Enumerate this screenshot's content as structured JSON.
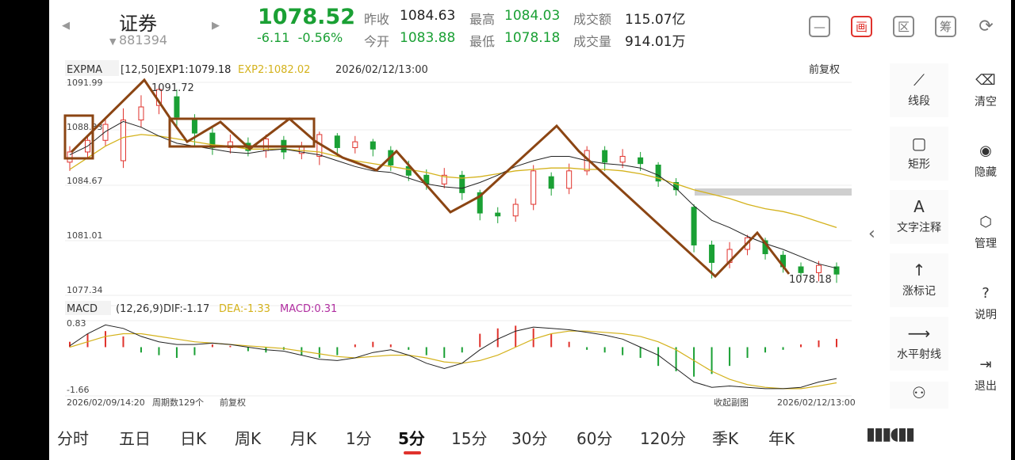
{
  "header": {
    "name": "证券",
    "code": "881394",
    "price": "1078.52",
    "change": "-6.11",
    "change_pct": "-0.56%",
    "stats": [
      {
        "label": "昨收",
        "value": "1084.63",
        "color": "#222222"
      },
      {
        "label": "今开",
        "value": "1083.88",
        "color": "#1aa034"
      },
      {
        "label": "最高",
        "value": "1084.03",
        "color": "#1aa034"
      },
      {
        "label": "最低",
        "value": "1078.18",
        "color": "#1aa034"
      },
      {
        "label": "成交额",
        "value": "115.07亿",
        "color": "#222222"
      },
      {
        "label": "成交量",
        "value": "914.01万",
        "color": "#222222"
      }
    ],
    "icons": [
      {
        "name": "minimize-icon",
        "glyph": "—"
      },
      {
        "name": "draw-icon",
        "glyph": "画"
      },
      {
        "name": "region-icon",
        "glyph": "区"
      },
      {
        "name": "chips-icon",
        "glyph": "筹"
      },
      {
        "name": "rotate-screen-icon",
        "glyph": "⟳"
      }
    ]
  },
  "main_chart": {
    "indicator": "EXPMA",
    "params": "[12,50]",
    "exp1": "EXP1:1079.18",
    "exp2": "EXP2:1082.02",
    "datetime": "2026/02/12/13:00",
    "adjust": "前复权",
    "y_labels": [
      "1091.99",
      "1088.33",
      "1084.67",
      "1081.01",
      "1077.34"
    ],
    "high_label": "1091.72",
    "low_label": "1078.18"
  },
  "sub_chart": {
    "indicator": "MACD",
    "params": "(12,26,9)",
    "dif": "DIF:-1.17",
    "dea": "DEA:-1.33",
    "macd": "MACD:0.31",
    "y_top": "0.83",
    "y_bottom": "-1.66",
    "start_time": "2026/02/09/14:20",
    "period_count": "周期数129个",
    "adjust": "前复权",
    "collapse": "收起副图",
    "end_time": "2026/02/12/13:00"
  },
  "colors": {
    "up": "#e0322c",
    "down": "#1aa034",
    "exp1": "#222222",
    "exp2": "#d4b21c",
    "trend": "#8b4513",
    "dea": "#d4b21c"
  },
  "chart_data": {
    "type": "candlestick",
    "indicator": "EXPMA(12,50)",
    "ylim": [
      1077.34,
      1091.99
    ],
    "series": [
      {
        "name": "EXP1",
        "values": [
          1087.0,
          1087.6,
          1088.6,
          1089.3,
          1088.9,
          1088.3,
          1087.8,
          1087.6,
          1087.4,
          1087.2,
          1087.1,
          1087.3,
          1087.4,
          1087.2,
          1087.0,
          1086.6,
          1086.2,
          1085.9,
          1085.8,
          1085.4,
          1085.0,
          1084.8,
          1084.7,
          1085.1,
          1085.6,
          1086.2,
          1086.6,
          1086.9,
          1086.9,
          1086.6,
          1086.4,
          1086.3,
          1086.1,
          1085.6,
          1084.7,
          1083.5,
          1082.5,
          1082.0,
          1081.4,
          1080.9,
          1080.5,
          1080.0,
          1079.5,
          1079.2
        ]
      },
      {
        "name": "EXP2",
        "values": [
          1086.0,
          1086.8,
          1087.6,
          1088.2,
          1088.4,
          1088.3,
          1088.1,
          1087.9,
          1087.7,
          1087.6,
          1087.4,
          1087.4,
          1087.4,
          1087.3,
          1087.2,
          1086.9,
          1086.6,
          1086.4,
          1086.2,
          1086.0,
          1085.8,
          1085.5,
          1085.4,
          1085.5,
          1085.7,
          1085.9,
          1086.0,
          1086.1,
          1086.1,
          1086.0,
          1086.0,
          1085.9,
          1085.7,
          1085.4,
          1085.0,
          1084.6,
          1084.3,
          1084.0,
          1083.6,
          1083.3,
          1083.1,
          1082.8,
          1082.4,
          1082.0
        ]
      }
    ],
    "candles": [
      {
        "o": 1086.5,
        "c": 1087.2,
        "h": 1087.6,
        "l": 1085.9
      },
      {
        "o": 1087.2,
        "c": 1088.0,
        "h": 1088.3,
        "l": 1086.8
      },
      {
        "o": 1088.0,
        "c": 1089.1,
        "h": 1089.6,
        "l": 1087.6
      },
      {
        "o": 1086.6,
        "c": 1089.4,
        "h": 1090.2,
        "l": 1086.1
      },
      {
        "o": 1089.4,
        "c": 1090.3,
        "h": 1091.1,
        "l": 1088.9
      },
      {
        "o": 1090.4,
        "c": 1091.5,
        "h": 1091.7,
        "l": 1089.8
      },
      {
        "o": 1091.0,
        "c": 1089.6,
        "h": 1091.5,
        "l": 1088.8
      },
      {
        "o": 1089.5,
        "c": 1088.5,
        "h": 1089.8,
        "l": 1087.6
      },
      {
        "o": 1088.5,
        "c": 1087.5,
        "h": 1088.9,
        "l": 1087.0
      },
      {
        "o": 1087.5,
        "c": 1087.9,
        "h": 1088.4,
        "l": 1087.1
      },
      {
        "o": 1087.8,
        "c": 1087.3,
        "h": 1088.2,
        "l": 1086.9
      },
      {
        "o": 1087.3,
        "c": 1088.1,
        "h": 1088.4,
        "l": 1086.8
      },
      {
        "o": 1088.0,
        "c": 1087.2,
        "h": 1088.3,
        "l": 1086.7
      },
      {
        "o": 1087.1,
        "c": 1087.6,
        "h": 1087.9,
        "l": 1086.7
      },
      {
        "o": 1086.9,
        "c": 1088.4,
        "h": 1088.6,
        "l": 1086.3
      },
      {
        "o": 1088.3,
        "c": 1087.5,
        "h": 1088.5,
        "l": 1086.9
      },
      {
        "o": 1087.5,
        "c": 1087.9,
        "h": 1088.3,
        "l": 1087.1
      },
      {
        "o": 1087.9,
        "c": 1087.4,
        "h": 1088.1,
        "l": 1086.9
      },
      {
        "o": 1087.3,
        "c": 1086.3,
        "h": 1087.6,
        "l": 1085.9
      },
      {
        "o": 1086.2,
        "c": 1085.6,
        "h": 1086.6,
        "l": 1085.2
      },
      {
        "o": 1085.6,
        "c": 1085.0,
        "h": 1086.0,
        "l": 1084.6
      },
      {
        "o": 1085.0,
        "c": 1085.6,
        "h": 1086.1,
        "l": 1084.7
      },
      {
        "o": 1085.6,
        "c": 1084.4,
        "h": 1085.9,
        "l": 1083.9
      },
      {
        "o": 1084.4,
        "c": 1083.0,
        "h": 1084.6,
        "l": 1082.5
      },
      {
        "o": 1083.0,
        "c": 1082.8,
        "h": 1083.4,
        "l": 1082.3
      },
      {
        "o": 1082.8,
        "c": 1083.6,
        "h": 1084.0,
        "l": 1082.4
      },
      {
        "o": 1083.6,
        "c": 1085.9,
        "h": 1086.3,
        "l": 1083.2
      },
      {
        "o": 1085.5,
        "c": 1084.7,
        "h": 1085.8,
        "l": 1084.2
      },
      {
        "o": 1084.7,
        "c": 1085.9,
        "h": 1086.4,
        "l": 1084.3
      },
      {
        "o": 1085.9,
        "c": 1087.3,
        "h": 1087.6,
        "l": 1085.6
      },
      {
        "o": 1087.3,
        "c": 1086.5,
        "h": 1087.6,
        "l": 1085.9
      },
      {
        "o": 1086.5,
        "c": 1086.9,
        "h": 1087.4,
        "l": 1086.1
      },
      {
        "o": 1086.8,
        "c": 1086.4,
        "h": 1087.2,
        "l": 1085.9
      },
      {
        "o": 1086.3,
        "c": 1085.2,
        "h": 1086.5,
        "l": 1084.8
      },
      {
        "o": 1085.1,
        "c": 1084.6,
        "h": 1085.4,
        "l": 1084.2
      },
      {
        "o": 1083.4,
        "c": 1080.8,
        "h": 1083.6,
        "l": 1080.3
      },
      {
        "o": 1080.8,
        "c": 1079.6,
        "h": 1081.1,
        "l": 1078.5
      },
      {
        "o": 1079.6,
        "c": 1080.5,
        "h": 1081.0,
        "l": 1079.2
      },
      {
        "o": 1080.5,
        "c": 1081.3,
        "h": 1081.5,
        "l": 1080.1
      },
      {
        "o": 1081.1,
        "c": 1080.2,
        "h": 1081.3,
        "l": 1079.8
      },
      {
        "o": 1080.1,
        "c": 1079.3,
        "h": 1080.4,
        "l": 1078.9
      },
      {
        "o": 1079.3,
        "c": 1078.9,
        "h": 1079.6,
        "l": 1078.5
      },
      {
        "o": 1078.9,
        "c": 1079.4,
        "h": 1079.7,
        "l": 1078.3
      },
      {
        "o": 1079.3,
        "c": 1078.8,
        "h": 1079.6,
        "l": 1078.2
      }
    ],
    "macd": {
      "dif": [
        0.05,
        0.5,
        0.83,
        0.7,
        0.4,
        0.2,
        0.1,
        0.1,
        0.15,
        0.1,
        0.0,
        -0.1,
        -0.15,
        -0.3,
        -0.45,
        -0.5,
        -0.4,
        -0.2,
        -0.1,
        -0.3,
        -0.6,
        -0.8,
        -0.6,
        -0.1,
        0.3,
        0.6,
        0.75,
        0.7,
        0.65,
        0.55,
        0.45,
        0.3,
        0.0,
        -0.3,
        -0.8,
        -1.3,
        -1.5,
        -1.45,
        -1.5,
        -1.55,
        -1.55,
        -1.5,
        -1.3,
        -1.17
      ],
      "dea": [
        0.0,
        0.2,
        0.4,
        0.5,
        0.5,
        0.4,
        0.3,
        0.2,
        0.15,
        0.1,
        0.05,
        0.0,
        -0.05,
        -0.15,
        -0.25,
        -0.35,
        -0.4,
        -0.35,
        -0.3,
        -0.3,
        -0.4,
        -0.55,
        -0.6,
        -0.5,
        -0.3,
        0.0,
        0.3,
        0.5,
        0.6,
        0.6,
        0.55,
        0.5,
        0.4,
        0.2,
        -0.1,
        -0.5,
        -0.9,
        -1.2,
        -1.4,
        -1.5,
        -1.55,
        -1.55,
        -1.45,
        -1.33
      ],
      "bars": [
        0.2,
        0.5,
        0.6,
        0.4,
        -0.2,
        -0.3,
        -0.4,
        -0.3,
        0.1,
        0.05,
        -0.15,
        -0.2,
        -0.1,
        -0.3,
        -0.4,
        -0.3,
        0.1,
        0.2,
        0.1,
        -0.1,
        -0.3,
        -0.4,
        -0.2,
        0.5,
        0.7,
        0.8,
        0.7,
        0.5,
        0.2,
        -0.1,
        -0.2,
        -0.3,
        -0.4,
        -0.7,
        -0.9,
        -1.1,
        -1.0,
        -0.7,
        -0.4,
        -0.2,
        -0.1,
        0.1,
        0.25,
        0.31
      ]
    }
  },
  "right_tools": [
    {
      "label": "线段",
      "icon": "line-segment-icon",
      "glyph": "⟋"
    },
    {
      "label": "矩形",
      "icon": "rectangle-icon",
      "glyph": "▢"
    },
    {
      "label": "文字注释",
      "icon": "text-annotation-icon",
      "glyph": "A"
    },
    {
      "label": "涨标记",
      "icon": "rise-mark-icon",
      "glyph": "↑"
    },
    {
      "label": "水平射线",
      "icon": "horizontal-ray-icon",
      "glyph": "⟶"
    }
  ],
  "side_menu": [
    {
      "label": "清空",
      "icon": "clear-icon",
      "glyph": "⌫"
    },
    {
      "label": "隐藏",
      "icon": "hide-icon",
      "glyph": "◉"
    },
    {
      "label": "管理",
      "icon": "manage-icon",
      "glyph": "⬡"
    },
    {
      "label": "说明",
      "icon": "help-icon",
      "glyph": "?"
    },
    {
      "label": "退出",
      "icon": "exit-icon",
      "glyph": "⇥"
    }
  ],
  "periods": [
    "分时",
    "五日",
    "日K",
    "周K",
    "月K",
    "1分",
    "5分",
    "15分",
    "30分",
    "60分",
    "120分",
    "季K",
    "年K"
  ],
  "active_period": "5分"
}
